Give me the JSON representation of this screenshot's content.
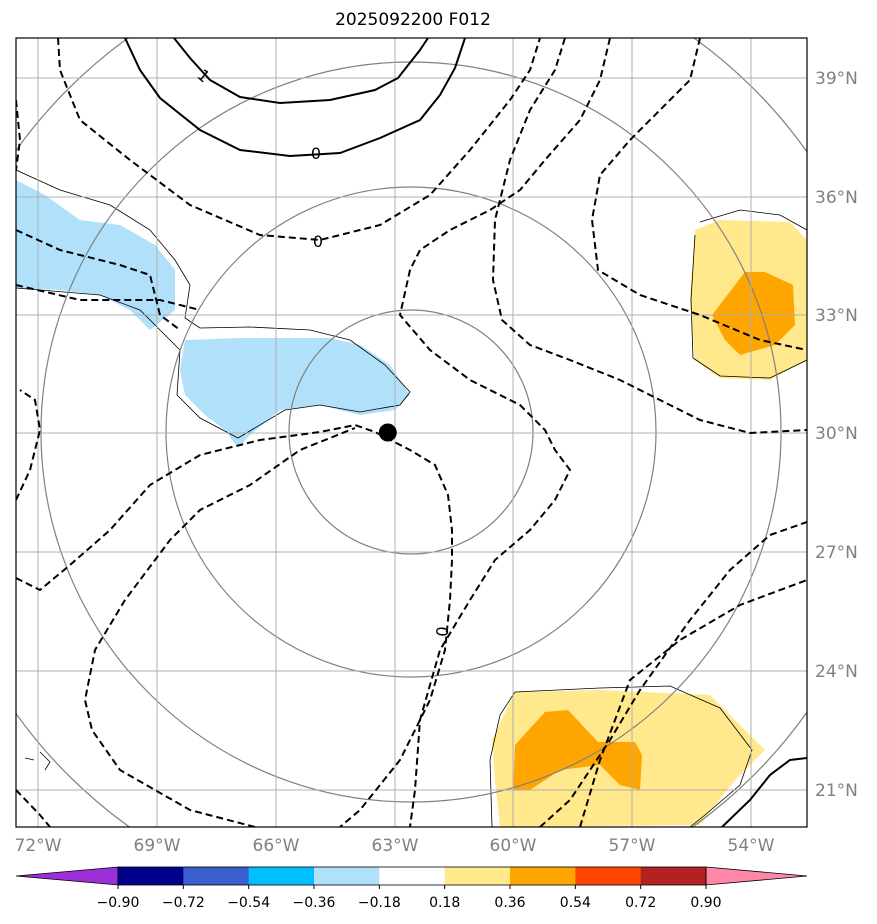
{
  "title": "2025092200 F012",
  "longitude_labels": [
    "72°W",
    "69°W",
    "66°W",
    "63°W",
    "60°W",
    "57°W",
    "54°W"
  ],
  "latitude_labels": [
    "39°N",
    "36°N",
    "33°N",
    "30°N",
    "27°N",
    "24°N",
    "21°N"
  ],
  "extent": {
    "lon_min": -72.0,
    "lon_max": -52.0,
    "lat_min": 20.0,
    "lat_max": 40.0
  },
  "storm_center": {
    "lon": -62.6,
    "lat": 30.0
  },
  "contour_labels": [
    "1",
    "0",
    "0",
    "0"
  ],
  "colorbar": {
    "tick_labels": [
      "−0.90",
      "−0.72",
      "−0.54",
      "−0.36",
      "−0.18",
      "0.18",
      "0.36",
      "0.54",
      "0.72",
      "0.90"
    ],
    "colors": [
      "#9b30d9",
      "#00008b",
      "#3a5fcd",
      "#00bfff",
      "#b0e0fa",
      "#ffffff",
      "#ffe98c",
      "#ffa500",
      "#ff4500",
      "#b22222",
      "#ff88aa"
    ]
  },
  "colors": {
    "range_ring": "#808080",
    "grid": "#b0b0b0",
    "storm_marker": "#000000"
  }
}
